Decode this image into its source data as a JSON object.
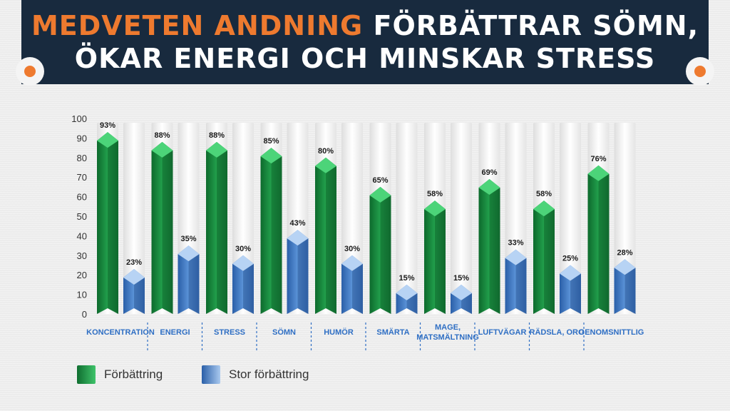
{
  "header": {
    "title_accent": "MEDVETEN ANDNING",
    "title_rest": " FÖRBÄTTRAR SÖMN,",
    "title_line2": "ÖKAR ENERGI OCH MINSKAR STRESS",
    "accent_color": "#ee7a2f",
    "banner_color": "#182a3e"
  },
  "chart_data": {
    "type": "bar",
    "categories": [
      "KONCENTRATION",
      "ENERGI",
      "STRESS",
      "SÖMN",
      "HUMÖR",
      "SMÄRTA",
      "MAGE,\nMATSMÄLTNING",
      "LUFTVÄGAR",
      "RÄDSLA, ORO",
      "GENOMSNITTLIG"
    ],
    "series": [
      {
        "name": "Förbättring",
        "values": [
          93,
          88,
          88,
          85,
          80,
          65,
          58,
          69,
          58,
          76
        ],
        "color": "#1f9a48"
      },
      {
        "name": "Stor förbättring",
        "values": [
          23,
          35,
          30,
          43,
          30,
          15,
          15,
          33,
          25,
          28
        ],
        "color": "#4a86d0"
      }
    ],
    "data_labels": [
      [
        "93%",
        "88%",
        "88%",
        "85%",
        "80%",
        "65%",
        "58%",
        "69%",
        "58%",
        "76%"
      ],
      [
        "23%",
        "35%",
        "30%",
        "43%",
        "30%",
        "15%",
        "15%",
        "33%",
        "25%",
        "28%"
      ]
    ],
    "yticks": [
      "0",
      "10",
      "20",
      "30",
      "40",
      "50",
      "60",
      "70",
      "80",
      "90",
      "100"
    ],
    "ylim": [
      0,
      100
    ],
    "legend_position": "bottom-left",
    "grid": false
  }
}
